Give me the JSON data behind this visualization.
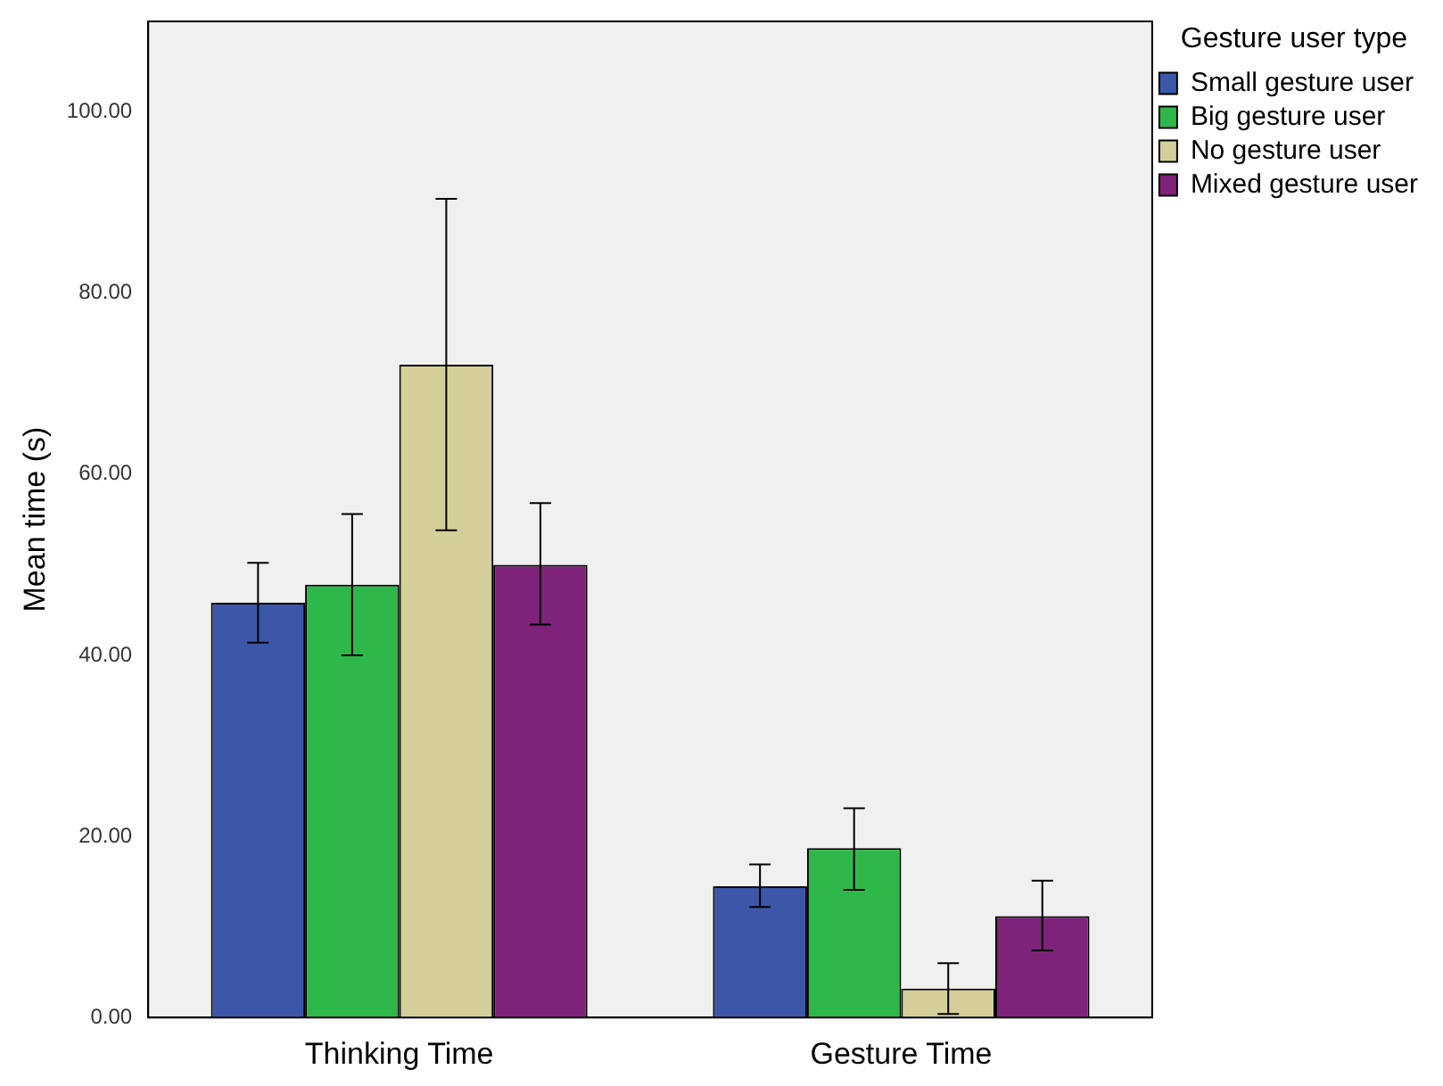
{
  "chart_data": {
    "type": "bar",
    "ylabel": "Mean time (s)",
    "legend_title": "Gesture user type",
    "categories": [
      "Thinking Time",
      "Gesture Time"
    ],
    "series": [
      {
        "name": "Small gesture user",
        "color": "#3c57a8",
        "values": [
          45.8,
          14.5
        ],
        "errors": [
          [
            41.4,
            50.2
          ],
          [
            12.2,
            16.9
          ]
        ]
      },
      {
        "name": "Big gesture user",
        "color": "#2fb84a",
        "values": [
          47.8,
          18.7
        ],
        "errors": [
          [
            40.0,
            55.6
          ],
          [
            14.1,
            23.1
          ]
        ]
      },
      {
        "name": "No gesture user",
        "color": "#d4cf98",
        "values": [
          72.1,
          3.2
        ],
        "errors": [
          [
            53.8,
            90.4
          ],
          [
            0.4,
            6.0
          ]
        ]
      },
      {
        "name": "Mixed gesture user",
        "color": "#7e2379",
        "values": [
          50.0,
          11.2
        ],
        "errors": [
          [
            43.4,
            56.8
          ],
          [
            7.4,
            15.1
          ]
        ]
      }
    ],
    "ylim": [
      0,
      110
    ],
    "yticks": [
      {
        "value": 0,
        "label": "0.00"
      },
      {
        "value": 20,
        "label": "20.00"
      },
      {
        "value": 40,
        "label": "40.00"
      },
      {
        "value": 60,
        "label": "60.00"
      },
      {
        "value": 80,
        "label": "80.00"
      },
      {
        "value": 100,
        "label": "100.00"
      }
    ],
    "grid": false,
    "legend": "top right"
  }
}
